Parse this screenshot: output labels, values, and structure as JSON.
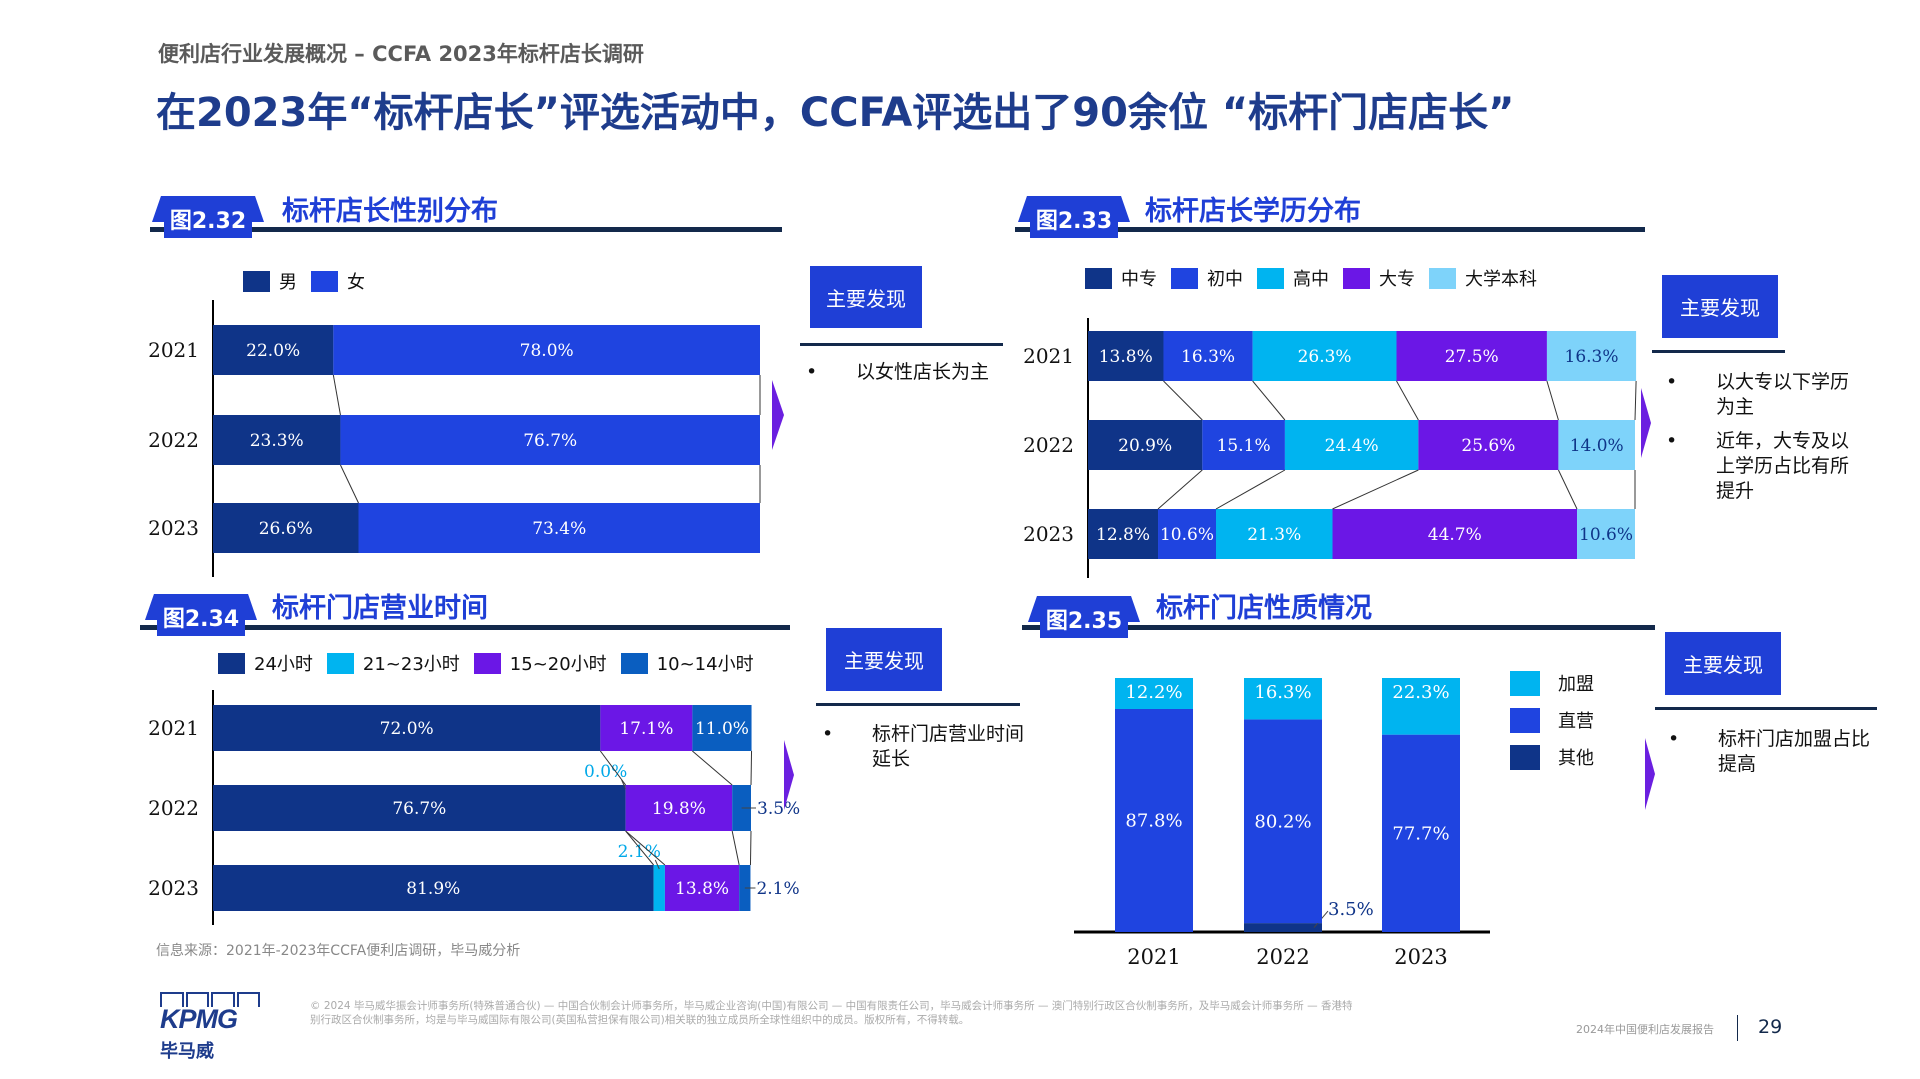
{
  "header": {
    "subtitle": "便利店行业发展概况 – CCFA 2023年标杆店长调研",
    "title": "在2023年“标杆店长”评选活动中，CCFA评选出了90余位 “标杆门店店长”"
  },
  "findings_label": "主要发现",
  "panels": [
    {
      "badge": "图2.32",
      "title": "标杆店长性别分布",
      "findings": [
        "以女性店长为主"
      ]
    },
    {
      "badge": "图2.33",
      "title": "标杆店长学历分布",
      "findings": [
        "以大专以下学历为主",
        "近年，大专及以上学历占比有所提升"
      ]
    },
    {
      "badge": "图2.34",
      "title": "标杆门店营业时间",
      "findings": [
        "标杆门店营业时间延长"
      ]
    },
    {
      "badge": "图2.35",
      "title": "标杆门店性质情况",
      "findings": [
        "标杆门店加盟占比提高"
      ]
    }
  ],
  "source": "信息来源：2021年-2023年CCFA便利店调研，毕马威分析",
  "footer": {
    "logo_text": "KPMG",
    "logo_cn": "毕马威",
    "legal": "© 2024 毕马威华振会计师事务所(特殊普通合伙) — 中国合伙制会计师事务所，毕马威企业咨询(中国)有限公司 — 中国有限责任公司，毕马威会计师事务所 — 澳门特别行政区合伙制事务所，及毕马威会计师事务所 — 香港特别行政区合伙制事务所，均是与毕马威国际有限公司(英国私营担保有限公司)相关联的独立成员所全球性组织中的成员。版权所有，不得转载。",
    "report_name": "2024年中国便利店发展报告",
    "page_number": "29"
  },
  "chart_data": [
    {
      "id": "fig-2-32",
      "type": "bar",
      "orientation": "horizontal-stacked-100",
      "title": "标杆店长性别分布",
      "categories": [
        "2021",
        "2022",
        "2023"
      ],
      "series": [
        {
          "name": "男",
          "color": "#0f3488",
          "label_color": "#ffffff",
          "values": [
            22.0,
            23.3,
            26.6
          ]
        },
        {
          "name": "女",
          "color": "#1f44e0",
          "label_color": "#ffffff",
          "values": [
            78.0,
            76.7,
            73.4
          ]
        }
      ],
      "unit": "%",
      "legend": "top-left"
    },
    {
      "id": "fig-2-33",
      "type": "bar",
      "orientation": "horizontal-stacked-100",
      "title": "标杆店长学历分布",
      "categories": [
        "2021",
        "2022",
        "2023"
      ],
      "series": [
        {
          "name": "中专",
          "color": "#0f3488",
          "label_color": "#ffffff",
          "values": [
            13.8,
            20.9,
            12.8
          ]
        },
        {
          "name": "初中",
          "color": "#1f44e0",
          "label_color": "#ffffff",
          "values": [
            16.3,
            15.1,
            10.6
          ]
        },
        {
          "name": "高中",
          "color": "#00b4f0",
          "label_color": "#ffffff",
          "values": [
            26.3,
            24.4,
            21.3
          ]
        },
        {
          "name": "大专",
          "color": "#6b17e6",
          "label_color": "#ffffff",
          "values": [
            27.5,
            25.6,
            44.7
          ]
        },
        {
          "name": "大学本科",
          "color": "#7ed3fa",
          "label_color": "#0f3488",
          "values": [
            16.3,
            14.0,
            10.6
          ]
        }
      ],
      "unit": "%",
      "legend": "top"
    },
    {
      "id": "fig-2-34",
      "type": "bar",
      "orientation": "horizontal-stacked",
      "title": "标杆门店营业时间",
      "categories": [
        "2021",
        "2022",
        "2023"
      ],
      "series": [
        {
          "name": "24小时",
          "color": "#0f3488",
          "label_color": "#ffffff",
          "values": [
            72.0,
            76.7,
            81.9
          ]
        },
        {
          "name": "21~23小时",
          "color": "#00b4f0",
          "label_color": "#00a8e8",
          "values": [
            null,
            0.0,
            2.1
          ]
        },
        {
          "name": "15~20小时",
          "color": "#6b17e6",
          "label_color": "#6b17e6",
          "values": [
            17.1,
            19.8,
            13.8
          ]
        },
        {
          "name": "10~14小时",
          "color": "#0a5ec0",
          "label_color": "#0f3488",
          "values": [
            11.0,
            3.5,
            2.1
          ]
        }
      ],
      "unit": "%",
      "legend": "top"
    },
    {
      "id": "fig-2-35",
      "type": "bar",
      "orientation": "vertical-stacked-100",
      "title": "标杆门店性质情况",
      "categories": [
        "2021",
        "2022",
        "2023"
      ],
      "series": [
        {
          "name": "其他",
          "color": "#0f3488",
          "label_color": "#0f3488",
          "values": [
            0.0,
            3.5,
            0.0
          ]
        },
        {
          "name": "直营",
          "color": "#1f44e0",
          "label_color": "#ffffff",
          "values": [
            87.8,
            80.2,
            77.7
          ]
        },
        {
          "name": "加盟",
          "color": "#00b4f0",
          "label_color": "#ffffff",
          "values": [
            12.2,
            16.3,
            22.3
          ]
        }
      ],
      "legend_order": [
        "加盟",
        "直营",
        "其他"
      ],
      "unit": "%",
      "legend": "right"
    }
  ]
}
